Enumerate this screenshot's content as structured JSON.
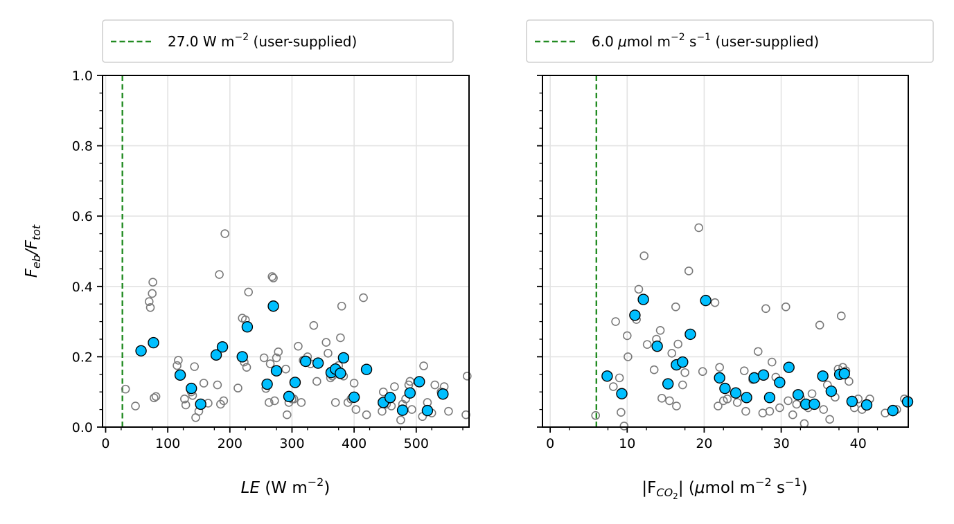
{
  "chart_data": [
    {
      "type": "scatter",
      "id": "left",
      "title": "",
      "xlabel_italic": "LE",
      "xlabel_rest": " (W m",
      "xlabel_sup": "−2",
      "xlabel_close": ")",
      "ylabel_main": "F",
      "ylabel_sub1": "eb",
      "ylabel_slash": "/F",
      "ylabel_sub2": "tot",
      "xlim": [
        -5,
        585
      ],
      "ylim": [
        0,
        1
      ],
      "xticks": [
        0,
        100,
        200,
        300,
        400,
        500
      ],
      "xtick_labels": [
        "0",
        "100",
        "200",
        "300",
        "400",
        "500"
      ],
      "yticks": [
        0,
        0.2,
        0.4,
        0.6,
        0.8,
        1.0
      ],
      "ytick_labels": [
        "0.0",
        "0.2",
        "0.4",
        "0.6",
        "0.8",
        "1.0"
      ],
      "grid": true,
      "legend_position": "top, above plot",
      "threshold": {
        "x": 27.0,
        "legend_text_pre": "27.0 W m",
        "legend_sup": "−2",
        "legend_text_post": " (user-supplied)",
        "color": "#228b22"
      },
      "all_points": [
        [
          32,
          0.108
        ],
        [
          48,
          0.06
        ],
        [
          70,
          0.357
        ],
        [
          72,
          0.34
        ],
        [
          75,
          0.38
        ],
        [
          76,
          0.412
        ],
        [
          78,
          0.083
        ],
        [
          81,
          0.087
        ],
        [
          115,
          0.175
        ],
        [
          117,
          0.19
        ],
        [
          127,
          0.08
        ],
        [
          129,
          0.063
        ],
        [
          138,
          0.1
        ],
        [
          140,
          0.09
        ],
        [
          143,
          0.172
        ],
        [
          145,
          0.027
        ],
        [
          150,
          0.045
        ],
        [
          158,
          0.125
        ],
        [
          165,
          0.068
        ],
        [
          180,
          0.12
        ],
        [
          183,
          0.434
        ],
        [
          185,
          0.065
        ],
        [
          190,
          0.075
        ],
        [
          192,
          0.55
        ],
        [
          213,
          0.111
        ],
        [
          220,
          0.31
        ],
        [
          223,
          0.185
        ],
        [
          225,
          0.305
        ],
        [
          227,
          0.17
        ],
        [
          230,
          0.384
        ],
        [
          255,
          0.197
        ],
        [
          258,
          0.11
        ],
        [
          263,
          0.07
        ],
        [
          265,
          0.18
        ],
        [
          268,
          0.428
        ],
        [
          270,
          0.424
        ],
        [
          272,
          0.075
        ],
        [
          275,
          0.197
        ],
        [
          278,
          0.214
        ],
        [
          290,
          0.165
        ],
        [
          292,
          0.035
        ],
        [
          295,
          0.07
        ],
        [
          300,
          0.08
        ],
        [
          303,
          0.08
        ],
        [
          310,
          0.23
        ],
        [
          315,
          0.07
        ],
        [
          318,
          0.19
        ],
        [
          325,
          0.2
        ],
        [
          330,
          0.18
        ],
        [
          335,
          0.289
        ],
        [
          340,
          0.13
        ],
        [
          355,
          0.241
        ],
        [
          358,
          0.21
        ],
        [
          362,
          0.14
        ],
        [
          365,
          0.145
        ],
        [
          370,
          0.07
        ],
        [
          375,
          0.175
        ],
        [
          378,
          0.254
        ],
        [
          380,
          0.344
        ],
        [
          383,
          0.145
        ],
        [
          390,
          0.07
        ],
        [
          395,
          0.08
        ],
        [
          400,
          0.125
        ],
        [
          403,
          0.05
        ],
        [
          415,
          0.368
        ],
        [
          420,
          0.035
        ],
        [
          445,
          0.045
        ],
        [
          447,
          0.1
        ],
        [
          452,
          0.065
        ],
        [
          460,
          0.06
        ],
        [
          465,
          0.115
        ],
        [
          475,
          0.02
        ],
        [
          478,
          0.065
        ],
        [
          483,
          0.08
        ],
        [
          488,
          0.12
        ],
        [
          490,
          0.13
        ],
        [
          493,
          0.05
        ],
        [
          510,
          0.03
        ],
        [
          512,
          0.174
        ],
        [
          518,
          0.07
        ],
        [
          525,
          0.04
        ],
        [
          530,
          0.12
        ],
        [
          540,
          0.1
        ],
        [
          545,
          0.115
        ],
        [
          552,
          0.045
        ],
        [
          580,
          0.035
        ],
        [
          582,
          0.145
        ]
      ],
      "binned_points": [
        [
          57,
          0.217
        ],
        [
          77,
          0.24
        ],
        [
          120,
          0.148
        ],
        [
          138,
          0.11
        ],
        [
          153,
          0.065
        ],
        [
          178,
          0.205
        ],
        [
          188,
          0.228
        ],
        [
          220,
          0.2
        ],
        [
          228,
          0.285
        ],
        [
          260,
          0.122
        ],
        [
          270,
          0.344
        ],
        [
          275,
          0.16
        ],
        [
          295,
          0.087
        ],
        [
          305,
          0.127
        ],
        [
          322,
          0.187
        ],
        [
          342,
          0.182
        ],
        [
          363,
          0.155
        ],
        [
          370,
          0.165
        ],
        [
          378,
          0.153
        ],
        [
          383,
          0.197
        ],
        [
          400,
          0.085
        ],
        [
          420,
          0.164
        ],
        [
          447,
          0.07
        ],
        [
          458,
          0.084
        ],
        [
          478,
          0.048
        ],
        [
          490,
          0.097
        ],
        [
          505,
          0.129
        ],
        [
          518,
          0.047
        ],
        [
          543,
          0.094
        ]
      ]
    },
    {
      "type": "scatter",
      "id": "right",
      "title": "",
      "xlabel_pre": "|F",
      "xlabel_sub": "CO",
      "xlabel_subsub": "2",
      "xlabel_mid": "| (",
      "xlabel_mu": "μ",
      "xlabel_rest": "mol m",
      "xlabel_sup1": "−2",
      "xlabel_s": " s",
      "xlabel_sup2": "−1",
      "xlabel_close": ")",
      "xlim": [
        -1,
        46.5
      ],
      "ylim": [
        0,
        1
      ],
      "xticks": [
        0,
        10,
        20,
        30,
        40
      ],
      "xtick_labels": [
        "0",
        "10",
        "20",
        "30",
        "40"
      ],
      "yticks": [
        0,
        0.2,
        0.4,
        0.6,
        0.8,
        1.0
      ],
      "grid": true,
      "legend_position": "top, above plot",
      "threshold": {
        "x": 6.0,
        "legend_mu": "μ",
        "legend_text_pre": "6.0 ",
        "legend_text_mid": "mol m",
        "legend_sup1": "−2",
        "legend_s": " s",
        "legend_sup2": "−1",
        "legend_text_post": " (user-supplied)",
        "color": "#228b22"
      },
      "all_points": [
        [
          5.9,
          0.033
        ],
        [
          8.2,
          0.115
        ],
        [
          8.5,
          0.3
        ],
        [
          9.0,
          0.14
        ],
        [
          9.2,
          0.042
        ],
        [
          9.6,
          0.003
        ],
        [
          10.0,
          0.26
        ],
        [
          10.1,
          0.2
        ],
        [
          11.2,
          0.306
        ],
        [
          11.5,
          0.392
        ],
        [
          12.2,
          0.487
        ],
        [
          12.6,
          0.235
        ],
        [
          13.5,
          0.163
        ],
        [
          13.8,
          0.25
        ],
        [
          14.3,
          0.275
        ],
        [
          14.5,
          0.082
        ],
        [
          15.5,
          0.075
        ],
        [
          15.8,
          0.21
        ],
        [
          16.3,
          0.342
        ],
        [
          16.4,
          0.06
        ],
        [
          16.6,
          0.236
        ],
        [
          17.2,
          0.12
        ],
        [
          17.5,
          0.155
        ],
        [
          18.0,
          0.444
        ],
        [
          19.3,
          0.567
        ],
        [
          19.8,
          0.158
        ],
        [
          21.4,
          0.354
        ],
        [
          21.8,
          0.06
        ],
        [
          22.0,
          0.17
        ],
        [
          22.5,
          0.075
        ],
        [
          23.0,
          0.08
        ],
        [
          24.3,
          0.07
        ],
        [
          25.2,
          0.16
        ],
        [
          25.4,
          0.045
        ],
        [
          26.3,
          0.135
        ],
        [
          27.0,
          0.215
        ],
        [
          27.6,
          0.04
        ],
        [
          28.0,
          0.337
        ],
        [
          28.5,
          0.045
        ],
        [
          28.8,
          0.185
        ],
        [
          29.3,
          0.142
        ],
        [
          29.8,
          0.055
        ],
        [
          30.6,
          0.342
        ],
        [
          30.9,
          0.075
        ],
        [
          31.5,
          0.035
        ],
        [
          32.0,
          0.065
        ],
        [
          32.5,
          0.083
        ],
        [
          33.0,
          0.01
        ],
        [
          33.5,
          0.055
        ],
        [
          34.0,
          0.095
        ],
        [
          34.5,
          0.065
        ],
        [
          35.0,
          0.29
        ],
        [
          35.5,
          0.05
        ],
        [
          36.0,
          0.12
        ],
        [
          36.3,
          0.022
        ],
        [
          37.0,
          0.085
        ],
        [
          37.4,
          0.165
        ],
        [
          37.8,
          0.316
        ],
        [
          38.0,
          0.17
        ],
        [
          38.4,
          0.16
        ],
        [
          38.8,
          0.13
        ],
        [
          39.5,
          0.055
        ],
        [
          40.0,
          0.08
        ],
        [
          40.5,
          0.05
        ],
        [
          41.5,
          0.08
        ],
        [
          43.5,
          0.04
        ],
        [
          45.0,
          0.05
        ],
        [
          46.0,
          0.08
        ]
      ],
      "binned_points": [
        [
          7.4,
          0.145
        ],
        [
          9.3,
          0.095
        ],
        [
          11.0,
          0.318
        ],
        [
          12.1,
          0.363
        ],
        [
          13.9,
          0.23
        ],
        [
          15.3,
          0.123
        ],
        [
          16.4,
          0.177
        ],
        [
          17.2,
          0.185
        ],
        [
          18.2,
          0.264
        ],
        [
          20.2,
          0.36
        ],
        [
          22.0,
          0.14
        ],
        [
          22.7,
          0.11
        ],
        [
          24.1,
          0.097
        ],
        [
          25.5,
          0.084
        ],
        [
          26.5,
          0.14
        ],
        [
          27.7,
          0.148
        ],
        [
          28.5,
          0.084
        ],
        [
          29.8,
          0.127
        ],
        [
          31.0,
          0.17
        ],
        [
          32.2,
          0.092
        ],
        [
          33.2,
          0.065
        ],
        [
          34.3,
          0.065
        ],
        [
          35.4,
          0.145
        ],
        [
          36.5,
          0.102
        ],
        [
          37.6,
          0.15
        ],
        [
          38.2,
          0.152
        ],
        [
          39.2,
          0.073
        ],
        [
          41.1,
          0.063
        ],
        [
          44.5,
          0.047
        ],
        [
          46.5,
          0.072
        ]
      ]
    }
  ]
}
